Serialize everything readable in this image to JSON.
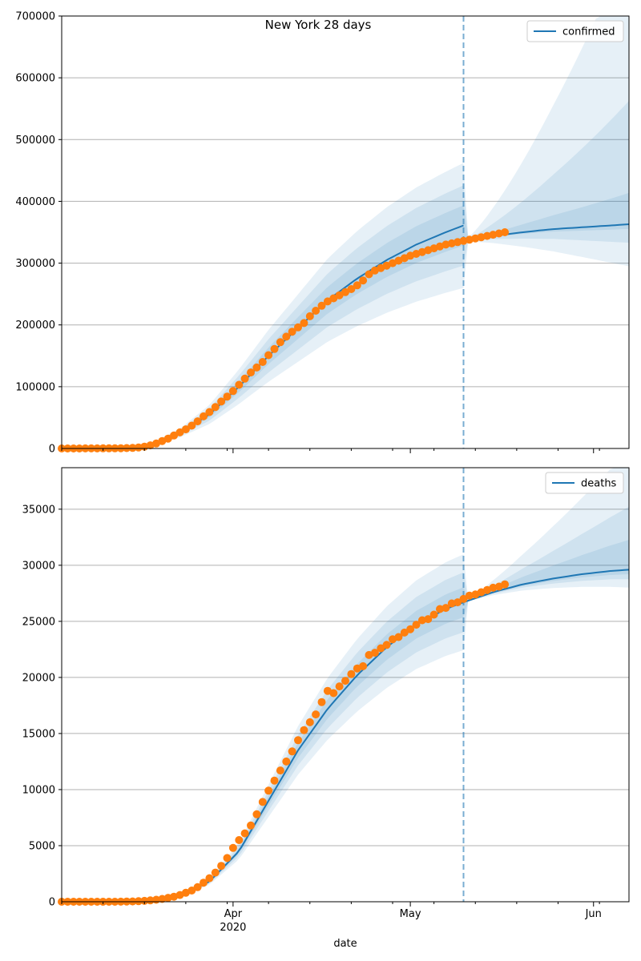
{
  "title": "New York 28 days",
  "xlabel": "date",
  "x_ticks": [
    {
      "date": "2020-04-01",
      "label": "Apr",
      "sublabel": "2020"
    },
    {
      "date": "2020-05-01",
      "label": "May",
      "sublabel": ""
    },
    {
      "date": "2020-06-01",
      "label": "Jun",
      "sublabel": ""
    }
  ],
  "colors": {
    "model_line": "#1f77b4",
    "band": "#1f77b4",
    "observed": "#ff7f0e",
    "grid": "#b0b0b0"
  },
  "chart_data": [
    {
      "type": "line",
      "name": "confirmed",
      "legend": "confirmed",
      "legend_position": "top-right",
      "title": "New York 28 days",
      "xlim": [
        "2020-03-03",
        "2020-06-07"
      ],
      "ylim": [
        0,
        700000
      ],
      "yticks": [
        0,
        100000,
        200000,
        300000,
        400000,
        500000,
        600000,
        700000
      ],
      "grid": "y",
      "forecast_start": "2020-05-10",
      "observed": {
        "x": [
          "2020-03-03",
          "2020-03-04",
          "2020-03-05",
          "2020-03-06",
          "2020-03-07",
          "2020-03-08",
          "2020-03-09",
          "2020-03-10",
          "2020-03-11",
          "2020-03-12",
          "2020-03-13",
          "2020-03-14",
          "2020-03-15",
          "2020-03-16",
          "2020-03-17",
          "2020-03-18",
          "2020-03-19",
          "2020-03-20",
          "2020-03-21",
          "2020-03-22",
          "2020-03-23",
          "2020-03-24",
          "2020-03-25",
          "2020-03-26",
          "2020-03-27",
          "2020-03-28",
          "2020-03-29",
          "2020-03-30",
          "2020-03-31",
          "2020-04-01",
          "2020-04-02",
          "2020-04-03",
          "2020-04-04",
          "2020-04-05",
          "2020-04-06",
          "2020-04-07",
          "2020-04-08",
          "2020-04-09",
          "2020-04-10",
          "2020-04-11",
          "2020-04-12",
          "2020-04-13",
          "2020-04-14",
          "2020-04-15",
          "2020-04-16",
          "2020-04-17",
          "2020-04-18",
          "2020-04-19",
          "2020-04-20",
          "2020-04-21",
          "2020-04-22",
          "2020-04-23",
          "2020-04-24",
          "2020-04-25",
          "2020-04-26",
          "2020-04-27",
          "2020-04-28",
          "2020-04-29",
          "2020-04-30",
          "2020-05-01",
          "2020-05-02",
          "2020-05-03",
          "2020-05-04",
          "2020-05-05",
          "2020-05-06",
          "2020-05-07",
          "2020-05-08",
          "2020-05-09",
          "2020-05-10",
          "2020-05-11",
          "2020-05-12",
          "2020-05-13",
          "2020-05-14",
          "2020-05-15",
          "2020-05-16",
          "2020-05-17"
        ],
        "y": [
          0,
          0,
          0,
          0,
          100,
          100,
          100,
          200,
          200,
          300,
          400,
          600,
          900,
          1500,
          3000,
          5000,
          8000,
          12000,
          16000,
          21000,
          26000,
          31000,
          37000,
          44000,
          52000,
          59000,
          67000,
          76000,
          84000,
          93000,
          103000,
          113000,
          123000,
          131000,
          140000,
          151000,
          161000,
          172000,
          181000,
          189000,
          196000,
          203000,
          214000,
          223000,
          231000,
          238000,
          243000,
          248000,
          253000,
          258000,
          264000,
          272000,
          282000,
          288000,
          292000,
          296000,
          300000,
          304000,
          308000,
          312000,
          315000,
          318000,
          321000,
          324000,
          327000,
          330000,
          332000,
          334000,
          336000,
          338000,
          340000,
          342000,
          344000,
          346000,
          348000,
          350000
        ]
      },
      "model": {
        "x": [
          "2020-03-03",
          "2020-03-13",
          "2020-03-18",
          "2020-03-23",
          "2020-03-28",
          "2020-04-02",
          "2020-04-07",
          "2020-04-12",
          "2020-04-17",
          "2020-04-22",
          "2020-04-27",
          "2020-05-02",
          "2020-05-07",
          "2020-05-10"
        ],
        "y": [
          0,
          500,
          6000,
          25000,
          55000,
          100000,
          150000,
          195000,
          240000,
          275000,
          305000,
          330000,
          350000,
          361000
        ]
      },
      "forecast": {
        "x": [
          "2020-05-10",
          "2020-05-15",
          "2020-05-20",
          "2020-05-25",
          "2020-05-30",
          "2020-06-04",
          "2020-06-07"
        ],
        "y": [
          336000,
          344000,
          350000,
          355000,
          358000,
          361000,
          363000
        ]
      }
    },
    {
      "type": "line",
      "name": "deaths",
      "legend": "deaths",
      "legend_position": "top-right",
      "xlim": [
        "2020-03-03",
        "2020-06-07"
      ],
      "ylim": [
        0,
        38700
      ],
      "yticks": [
        0,
        5000,
        10000,
        15000,
        20000,
        25000,
        30000,
        35000
      ],
      "grid": "y",
      "xlabel": "date",
      "forecast_start": "2020-05-10",
      "observed": {
        "x": [
          "2020-03-03",
          "2020-03-04",
          "2020-03-05",
          "2020-03-06",
          "2020-03-07",
          "2020-03-08",
          "2020-03-09",
          "2020-03-10",
          "2020-03-11",
          "2020-03-12",
          "2020-03-13",
          "2020-03-14",
          "2020-03-15",
          "2020-03-16",
          "2020-03-17",
          "2020-03-18",
          "2020-03-19",
          "2020-03-20",
          "2020-03-21",
          "2020-03-22",
          "2020-03-23",
          "2020-03-24",
          "2020-03-25",
          "2020-03-26",
          "2020-03-27",
          "2020-03-28",
          "2020-03-29",
          "2020-03-30",
          "2020-03-31",
          "2020-04-01",
          "2020-04-02",
          "2020-04-03",
          "2020-04-04",
          "2020-04-05",
          "2020-04-06",
          "2020-04-07",
          "2020-04-08",
          "2020-04-09",
          "2020-04-10",
          "2020-04-11",
          "2020-04-12",
          "2020-04-13",
          "2020-04-14",
          "2020-04-15",
          "2020-04-16",
          "2020-04-17",
          "2020-04-18",
          "2020-04-19",
          "2020-04-20",
          "2020-04-21",
          "2020-04-22",
          "2020-04-23",
          "2020-04-24",
          "2020-04-25",
          "2020-04-26",
          "2020-04-27",
          "2020-04-28",
          "2020-04-29",
          "2020-04-30",
          "2020-05-01",
          "2020-05-02",
          "2020-05-03",
          "2020-05-04",
          "2020-05-05",
          "2020-05-06",
          "2020-05-07",
          "2020-05-08",
          "2020-05-09",
          "2020-05-10",
          "2020-05-11",
          "2020-05-12",
          "2020-05-13",
          "2020-05-14",
          "2020-05-15",
          "2020-05-16",
          "2020-05-17"
        ],
        "y": [
          0,
          0,
          0,
          0,
          0,
          0,
          0,
          0,
          0,
          0,
          10,
          20,
          30,
          50,
          80,
          120,
          180,
          250,
          350,
          450,
          600,
          800,
          1000,
          1300,
          1700,
          2100,
          2600,
          3200,
          3900,
          4800,
          5500,
          6100,
          6800,
          7800,
          8900,
          9900,
          10800,
          11700,
          12500,
          13400,
          14400,
          15300,
          16000,
          16700,
          17800,
          18800,
          18600,
          19200,
          19700,
          20300,
          20800,
          21000,
          22000,
          22200,
          22600,
          22900,
          23400,
          23600,
          24000,
          24300,
          24700,
          25100,
          25200,
          25600,
          26100,
          26200,
          26600,
          26700,
          27000,
          27300,
          27400,
          27600,
          27800,
          28000,
          28100,
          28300
        ]
      },
      "model": {
        "x": [
          "2020-03-03",
          "2020-03-13",
          "2020-03-18",
          "2020-03-23",
          "2020-03-28",
          "2020-04-02",
          "2020-04-07",
          "2020-04-12",
          "2020-04-17",
          "2020-04-22",
          "2020-04-27",
          "2020-05-02",
          "2020-05-07",
          "2020-05-10"
        ],
        "y": [
          0,
          10,
          100,
          500,
          1800,
          4500,
          9000,
          13500,
          17200,
          20200,
          22700,
          24700,
          26100,
          26700
        ]
      },
      "forecast": {
        "x": [
          "2020-05-10",
          "2020-05-15",
          "2020-05-20",
          "2020-05-25",
          "2020-05-30",
          "2020-06-04",
          "2020-06-07"
        ],
        "y": [
          26700,
          27600,
          28300,
          28800,
          29200,
          29500,
          29600
        ]
      }
    }
  ]
}
